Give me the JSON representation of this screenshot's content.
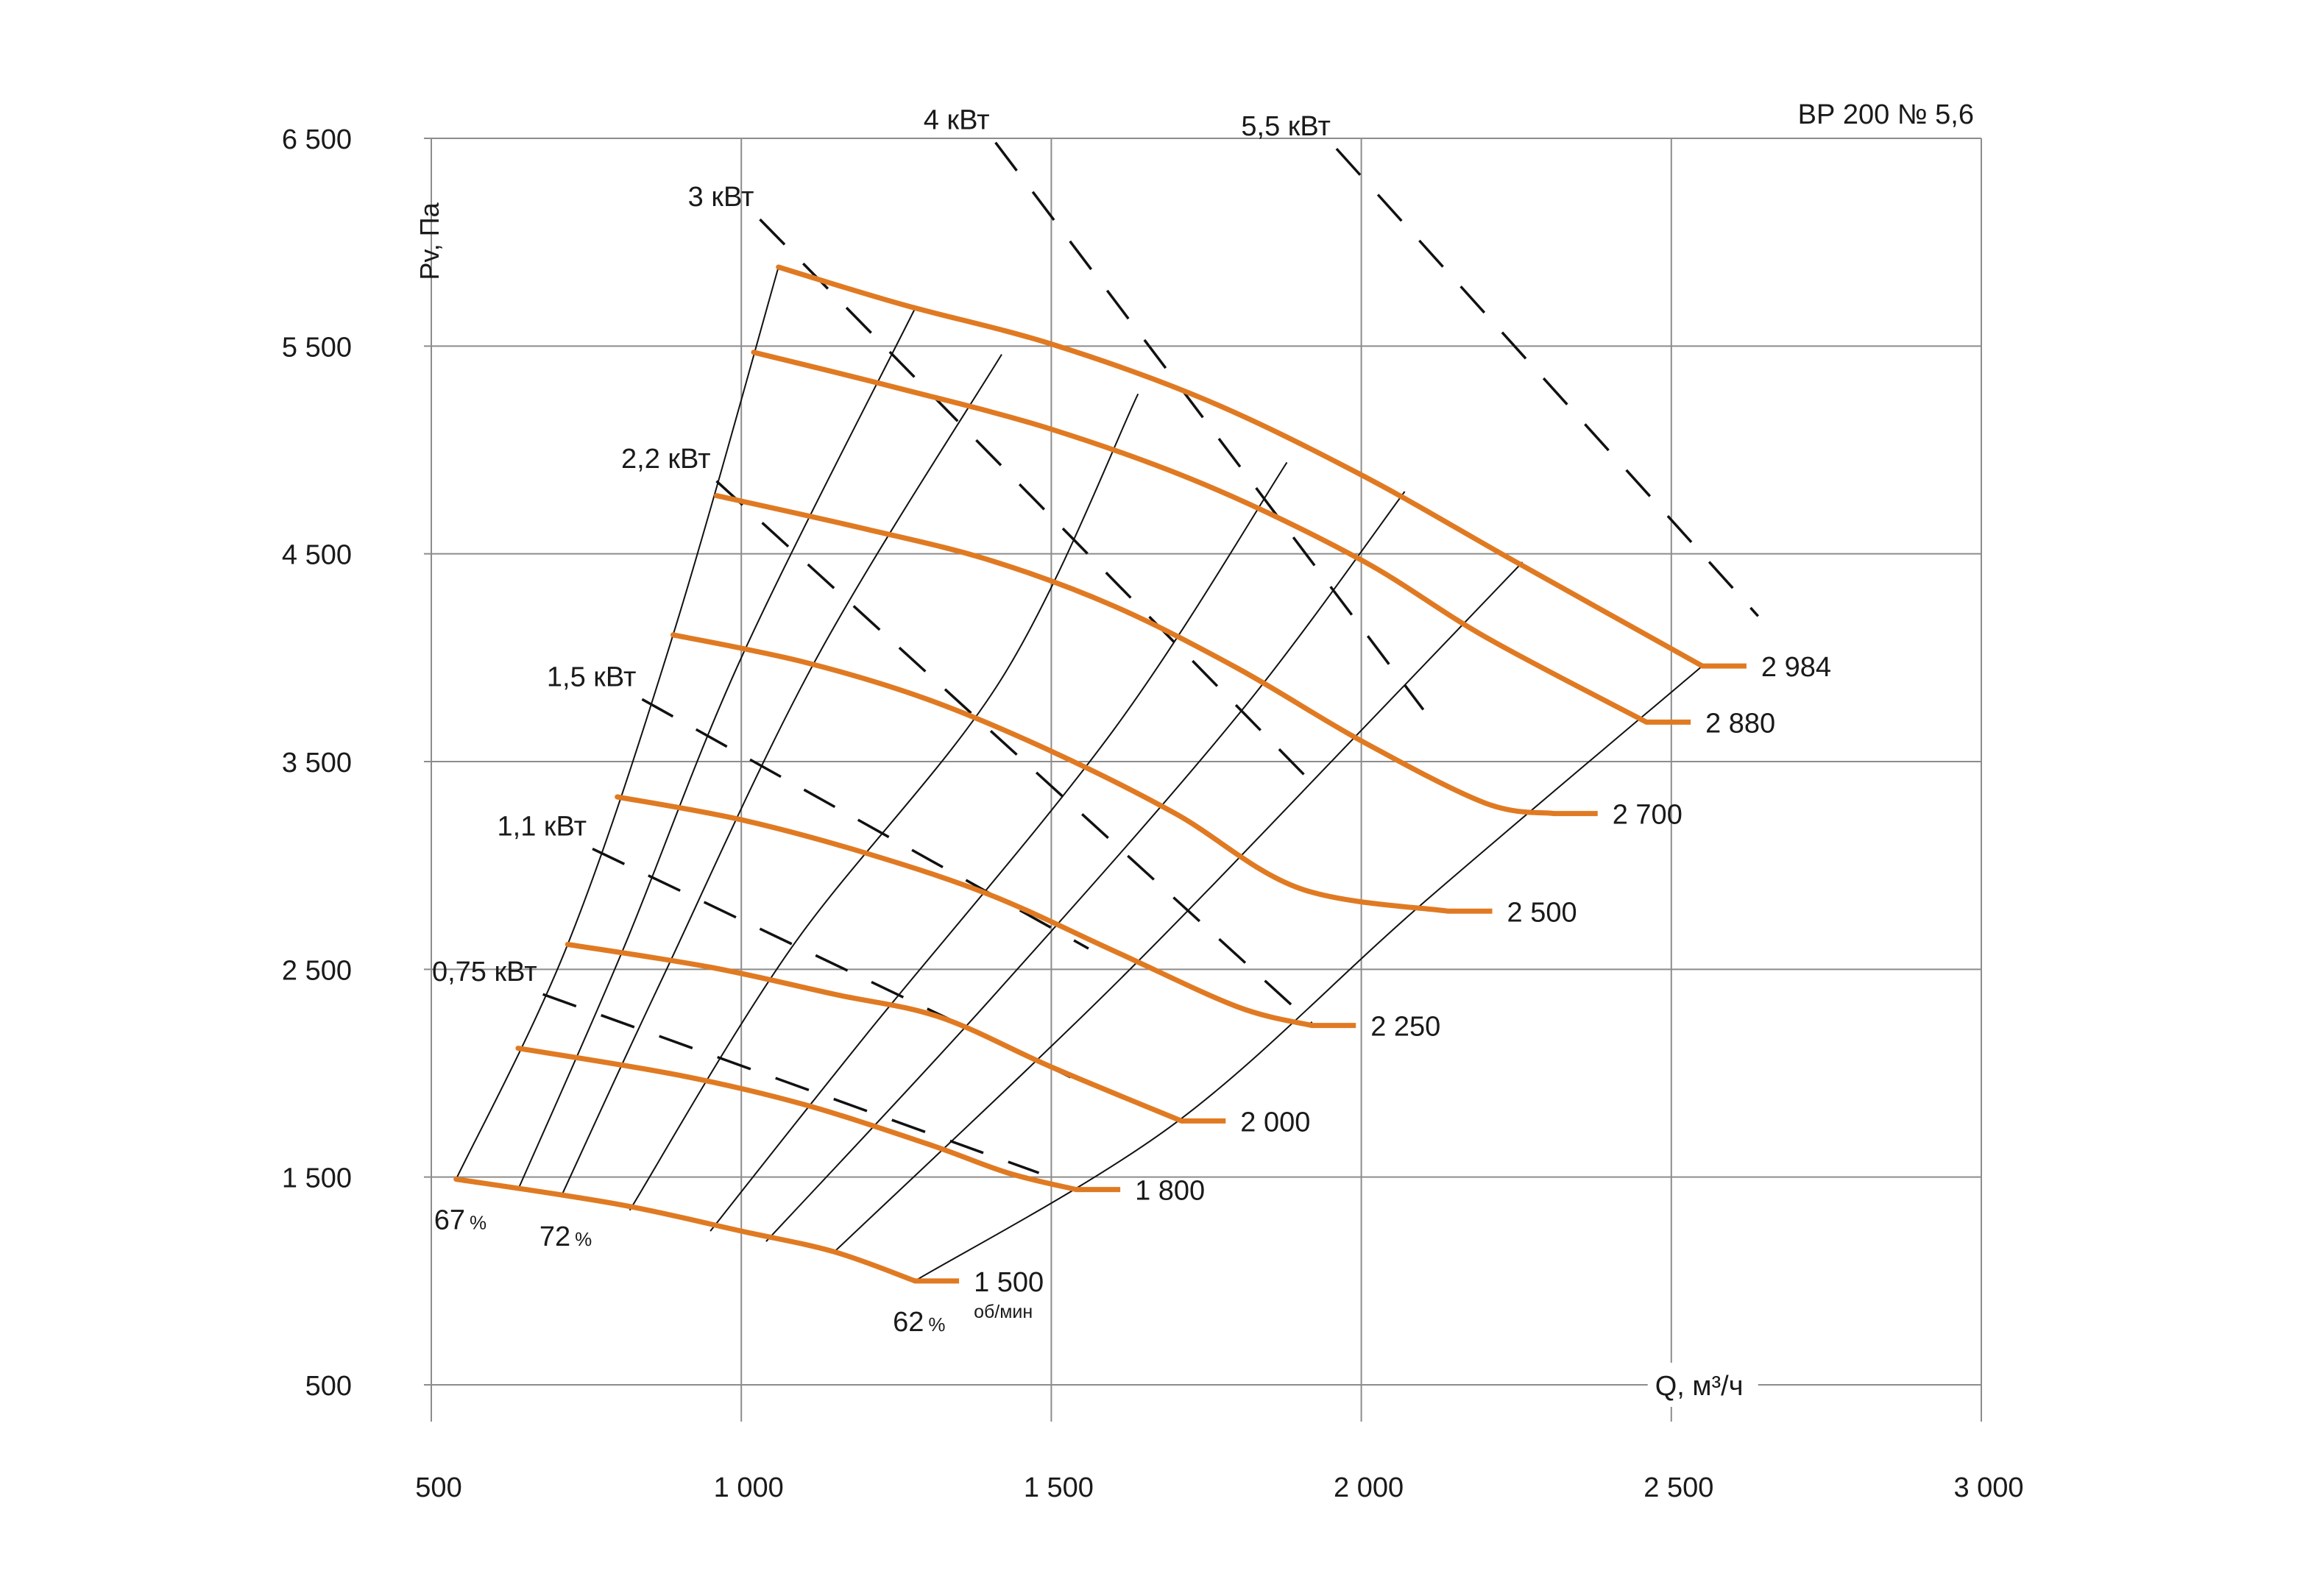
{
  "chart_data": {
    "type": "line",
    "title": "ВР  200 № 5,6",
    "xlabel": "Q, м³/ч",
    "ylabel": "Pv, Па",
    "xlim": [
      500,
      3000
    ],
    "ylim": [
      500,
      6500
    ],
    "x_ticks": [
      500,
      1000,
      1500,
      2000,
      2500,
      3000
    ],
    "x_tick_labels": [
      "500",
      "1 000",
      "1 500",
      "2 000",
      "2 500",
      "3 000"
    ],
    "y_ticks": [
      500,
      1500,
      2500,
      3500,
      4500,
      5500,
      6500
    ],
    "y_tick_labels": [
      "500",
      "1 500",
      "2 500",
      "3 500",
      "4 500",
      "5 500",
      "6 500"
    ],
    "grid": true,
    "speed_unit": "об/мин",
    "series": [
      {
        "name": "1 500",
        "points": [
          [
            540,
            1490
          ],
          [
            800,
            1370
          ],
          [
            1000,
            1240
          ],
          [
            1150,
            1140
          ],
          [
            1280,
            1000
          ]
        ]
      },
      {
        "name": "1 800",
        "points": [
          [
            640,
            2120
          ],
          [
            900,
            1990
          ],
          [
            1100,
            1850
          ],
          [
            1300,
            1660
          ],
          [
            1430,
            1520
          ],
          [
            1540,
            1440
          ]
        ]
      },
      {
        "name": "2 000",
        "points": [
          [
            720,
            2620
          ],
          [
            950,
            2510
          ],
          [
            1150,
            2380
          ],
          [
            1320,
            2270
          ],
          [
            1500,
            2030
          ],
          [
            1710,
            1770
          ]
        ]
      },
      {
        "name": "2 250",
        "points": [
          [
            800,
            3330
          ],
          [
            1000,
            3220
          ],
          [
            1200,
            3060
          ],
          [
            1400,
            2860
          ],
          [
            1600,
            2590
          ],
          [
            1800,
            2320
          ],
          [
            1920,
            2230
          ]
        ]
      },
      {
        "name": "2 500",
        "points": [
          [
            890,
            4110
          ],
          [
            1100,
            3980
          ],
          [
            1300,
            3800
          ],
          [
            1500,
            3550
          ],
          [
            1700,
            3250
          ],
          [
            1900,
            2890
          ],
          [
            2140,
            2780
          ]
        ]
      },
      {
        "name": "2 700",
        "points": [
          [
            960,
            4780
          ],
          [
            1200,
            4620
          ],
          [
            1400,
            4470
          ],
          [
            1600,
            4250
          ],
          [
            1800,
            3950
          ],
          [
            2000,
            3600
          ],
          [
            2200,
            3300
          ],
          [
            2310,
            3250
          ]
        ]
      },
      {
        "name": "2 880",
        "points": [
          [
            1020,
            5470
          ],
          [
            1250,
            5300
          ],
          [
            1500,
            5100
          ],
          [
            1750,
            4830
          ],
          [
            2000,
            4470
          ],
          [
            2200,
            4100
          ],
          [
            2460,
            3690
          ]
        ]
      },
      {
        "name": "2 984",
        "points": [
          [
            1060,
            5880
          ],
          [
            1260,
            5700
          ],
          [
            1500,
            5510
          ],
          [
            1750,
            5240
          ],
          [
            2000,
            4880
          ],
          [
            2250,
            4460
          ],
          [
            2550,
            3960
          ]
        ]
      }
    ],
    "efficiency_lines": [
      {
        "label": "67",
        "unit": "%",
        "points": [
          [
            540,
            1490
          ],
          [
            720,
            2620
          ],
          [
            890,
            4110
          ],
          [
            1060,
            5880
          ]
        ]
      },
      {
        "label": "",
        "points": [
          [
            640,
            1440
          ],
          [
            810,
            2600
          ],
          [
            1000,
            4000
          ],
          [
            1280,
            5680
          ]
        ]
      },
      {
        "label": "72",
        "unit": "%",
        "points": [
          [
            710,
            1410
          ],
          [
            870,
            2440
          ],
          [
            1120,
            3990
          ],
          [
            1420,
            5460
          ]
        ]
      },
      {
        "label": "",
        "points": [
          [
            820,
            1340
          ],
          [
            1080,
            2600
          ],
          [
            1420,
            3900
          ],
          [
            1640,
            5270
          ]
        ]
      },
      {
        "label": "",
        "points": [
          [
            950,
            1240
          ],
          [
            1200,
            2180
          ],
          [
            1600,
            3650
          ],
          [
            1880,
            4940
          ]
        ]
      },
      {
        "label": "",
        "points": [
          [
            1040,
            1190
          ],
          [
            1400,
            2350
          ],
          [
            1800,
            3720
          ],
          [
            2070,
            4800
          ]
        ]
      },
      {
        "label": "",
        "points": [
          [
            1150,
            1140
          ],
          [
            1600,
            2420
          ],
          [
            2000,
            3650
          ],
          [
            2260,
            4460
          ]
        ]
      },
      {
        "label": "62",
        "unit": "%",
        "points": [
          [
            1280,
            1000
          ],
          [
            1700,
            1760
          ],
          [
            2100,
            2820
          ],
          [
            2550,
            3960
          ]
        ]
      }
    ],
    "power_lines": [
      {
        "label": "0,75 кВт",
        "points": [
          [
            680,
            2380
          ],
          [
            1480,
            1520
          ]
        ]
      },
      {
        "label": "1,1 кВт",
        "points": [
          [
            760,
            3080
          ],
          [
            1560,
            1940
          ]
        ]
      },
      {
        "label": "1,5 кВт",
        "points": [
          [
            840,
            3800
          ],
          [
            1560,
            2600
          ]
        ]
      },
      {
        "label": "2,2 кВт",
        "points": [
          [
            960,
            4850
          ],
          [
            1920,
            2240
          ]
        ]
      },
      {
        "label": "3 кВт",
        "points": [
          [
            1030,
            6110
          ],
          [
            1910,
            3430
          ]
        ]
      },
      {
        "label": "4 кВт",
        "points": [
          [
            1410,
            6480
          ],
          [
            2100,
            3750
          ]
        ]
      },
      {
        "label": "5,5 кВт",
        "points": [
          [
            1960,
            6450
          ],
          [
            2640,
            4200
          ]
        ]
      }
    ]
  }
}
